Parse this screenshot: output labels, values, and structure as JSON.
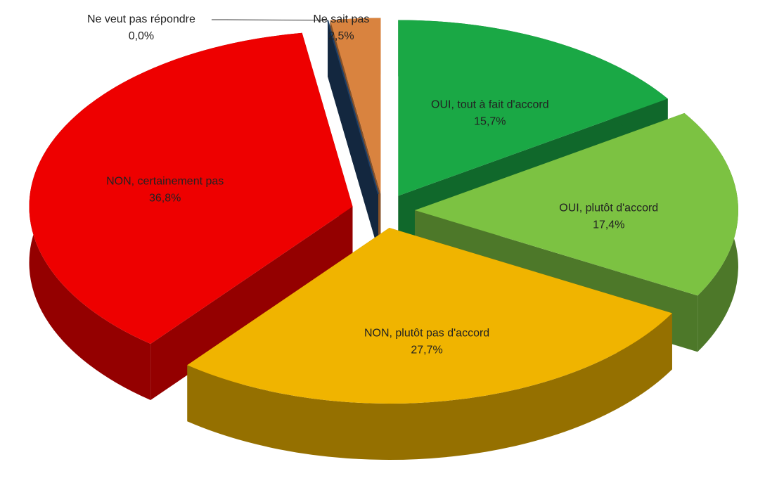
{
  "chart_data": {
    "type": "pie",
    "categories": [
      "OUI, tout à fait d'accord",
      "OUI, plutôt d'accord",
      "NON, plutôt pas d'accord",
      "NON, certainement pas",
      "Ne veut pas répondre",
      "Ne sait pas"
    ],
    "values": [
      15.7,
      17.4,
      27.7,
      36.8,
      0.0,
      2.5
    ],
    "value_labels": [
      "15,7%",
      "17,4%",
      "27,7%",
      "36,8%",
      "0,0%",
      "2,5%"
    ],
    "colors": [
      "#1aa845",
      "#7cc242",
      "#f0b400",
      "#ee0000",
      "#1f3f66",
      "#d9833f"
    ]
  }
}
